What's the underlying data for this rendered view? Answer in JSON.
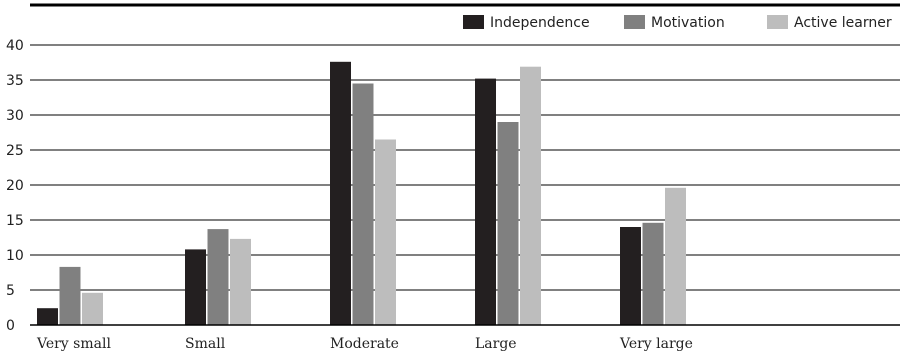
{
  "chart_data": {
    "type": "bar",
    "title": "",
    "xlabel": "",
    "ylabel": "",
    "categories": [
      "Very small",
      "Small",
      "Moderate",
      "Large",
      "Very large"
    ],
    "series": [
      {
        "name": "Independence",
        "color": "#231f20",
        "values": [
          2.4,
          10.8,
          37.6,
          35.2,
          14.0
        ]
      },
      {
        "name": "Motivation",
        "color": "#808080",
        "values": [
          8.3,
          13.7,
          34.5,
          29.0,
          14.6
        ]
      },
      {
        "name": "Active learner",
        "color": "#bdbdbd",
        "values": [
          4.6,
          12.3,
          26.5,
          36.9,
          19.6
        ]
      }
    ],
    "ylim": [
      0,
      40
    ],
    "yticks": [
      0,
      5,
      10,
      15,
      20,
      25,
      30,
      35,
      40
    ],
    "grid": true,
    "legend_position": "top-right"
  }
}
